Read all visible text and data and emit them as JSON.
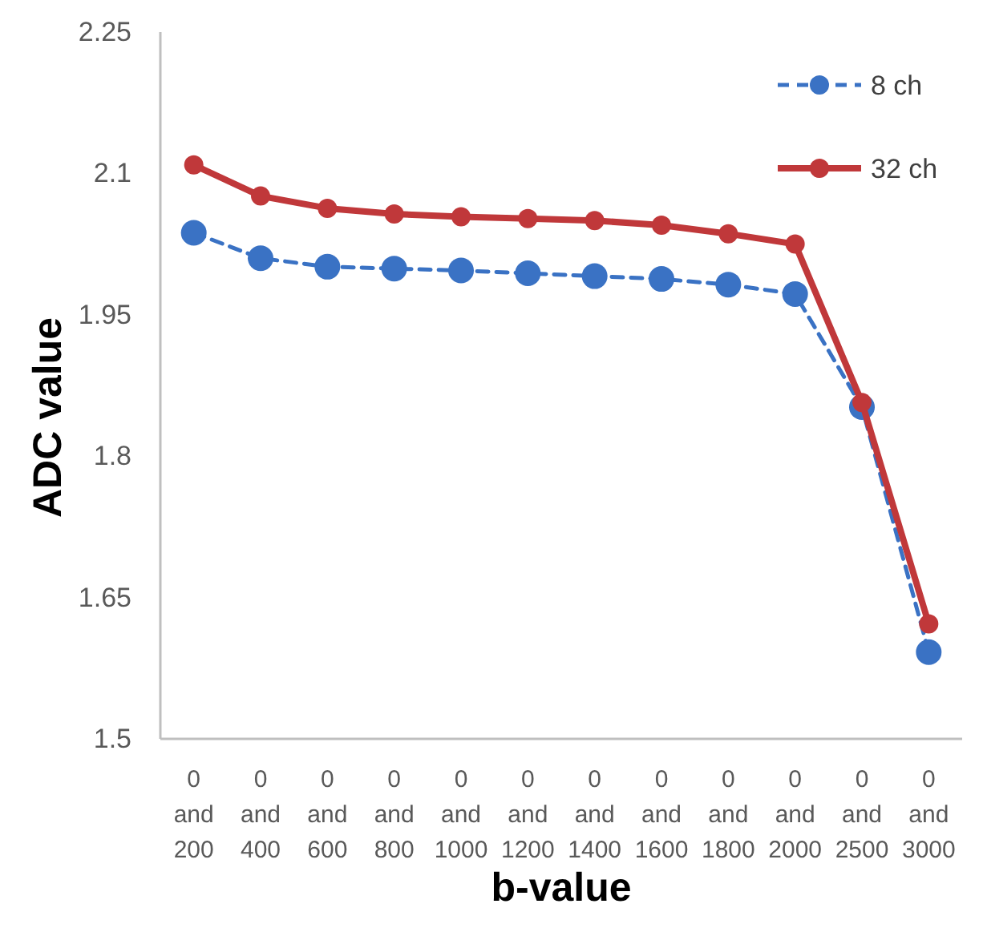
{
  "chart_data": {
    "type": "line",
    "xlabel": "b-value",
    "ylabel": "ADC value",
    "categories": [
      "0 and 200",
      "0 and 400",
      "0 and 600",
      "0 and 800",
      "0 and 1000",
      "0 and 1200",
      "0 and 1400",
      "0 and 1600",
      "0 and 1800",
      "0 and 2000",
      "0 and 2500",
      "0 and 3000"
    ],
    "series": [
      {
        "name": "8 ch",
        "color": "#3a72c4",
        "line_style": "dashed",
        "values": [
          2.037,
          2.01,
          2.001,
          1.999,
          1.997,
          1.994,
          1.991,
          1.988,
          1.982,
          1.972,
          1.852,
          1.592
        ]
      },
      {
        "name": "32 ch",
        "color": "#c0383a",
        "line_style": "solid",
        "values": [
          2.109,
          2.076,
          2.063,
          2.057,
          2.054,
          2.052,
          2.05,
          2.045,
          2.036,
          2.025,
          1.857,
          1.622
        ]
      }
    ],
    "ylim": [
      1.5,
      2.25
    ],
    "yticks": [
      1.5,
      1.65,
      1.8,
      1.95,
      2.1,
      2.25
    ],
    "grid": false,
    "legend": "top right",
    "marker": "circle"
  }
}
